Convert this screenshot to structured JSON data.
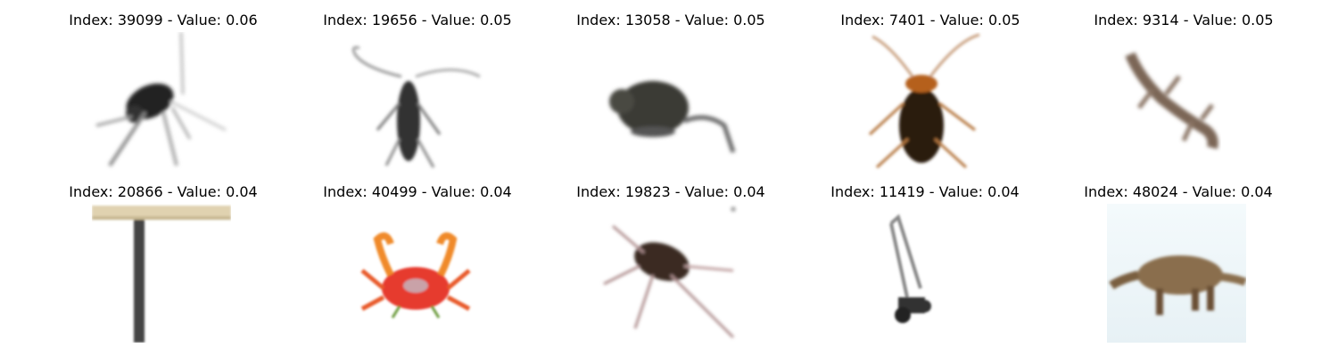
{
  "panels": [
    {
      "title": "Index: 39099 - Value: 0.06",
      "image": "black-cockroach-image"
    },
    {
      "title": "Index: 19656 - Value: 0.05",
      "image": "longhorn-beetle-image"
    },
    {
      "title": "Index: 13058 - Value: 0.05",
      "image": "rat-image"
    },
    {
      "title": "Index: 7401 - Value: 0.05",
      "image": "brown-cockroach-image"
    },
    {
      "title": "Index: 9314 - Value: 0.05",
      "image": "lizard-image"
    },
    {
      "title": "Index: 20866 - Value: 0.04",
      "image": "table-image"
    },
    {
      "title": "Index: 40499 - Value: 0.04",
      "image": "red-crab-image"
    },
    {
      "title": "Index: 19823 - Value: 0.04",
      "image": "spider-beetle-image"
    },
    {
      "title": "Index: 11419 - Value: 0.04",
      "image": "lawn-mower-image"
    },
    {
      "title": "Index: 48024 - Value: 0.04",
      "image": "anteater-image"
    }
  ]
}
